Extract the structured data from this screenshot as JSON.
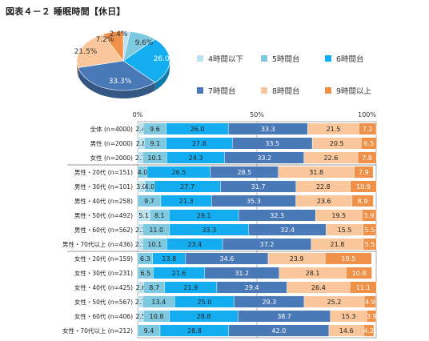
{
  "figure_title": "図表４－２ 睡眠時間【休日】",
  "chart_data": [
    {
      "type": "pie",
      "categories": [
        "4時間以下",
        "5時間台",
        "6時間台",
        "7時間台",
        "8時間台",
        "9時間以上"
      ],
      "values": [
        2.4,
        9.6,
        26.0,
        33.3,
        21.5,
        7.2
      ],
      "value_labels": [
        "2.4%",
        "9.6%",
        "26.0%",
        "33.3%",
        "21.5%",
        "7.2%"
      ],
      "colors": [
        "#bfe3ee",
        "#7ec8e0",
        "#14aef0",
        "#4a79b8",
        "#f9c79b",
        "#f0914a"
      ],
      "legend": "right"
    },
    {
      "type": "bar",
      "orientation": "horizontal",
      "stacked": true,
      "axis_labels": [
        "0%",
        "50%",
        "100%"
      ],
      "xlim": [
        0,
        100
      ],
      "categories": [
        "全体 (n=4000)",
        "男性 (n=2000)",
        "女性 (n=2000)",
        "男性・20代 (n=151)",
        "男性・30代 (n=101)",
        "男性・40代 (n=258)",
        "男性・50代 (n=492)",
        "男性・60代 (n=562)",
        "男性・70代以上 (n=436)",
        "女性・20代 (n=159)",
        "女性・30代 (n=231)",
        "女性・40代 (n=425)",
        "女性・50代 (n=567)",
        "女性・60代 (n=406)",
        "女性・70代以上 (n=212)"
      ],
      "series": [
        {
          "name": "4時間以下",
          "values": [
            2.4,
            2.8,
            2.1,
            0,
            3.0,
            0,
            5.1,
            2.3,
            2.1,
            0,
            0,
            2.6,
            2.1,
            2.5,
            0
          ]
        },
        {
          "name": "5時間台",
          "values": [
            9.6,
            9.1,
            10.1,
            4.0,
            4.0,
            9.7,
            8.1,
            11.0,
            10.1,
            6.3,
            6.5,
            8.7,
            13.4,
            10.8,
            9.4
          ]
        },
        {
          "name": "6時間台",
          "values": [
            26.0,
            27.8,
            24.3,
            26.5,
            27.7,
            21.3,
            29.1,
            33.3,
            23.4,
            13.8,
            21.6,
            21.9,
            25.0,
            28.8,
            28.8
          ]
        },
        {
          "name": "7時間台",
          "values": [
            33.3,
            33.5,
            33.2,
            28.5,
            31.7,
            35.3,
            32.3,
            32.4,
            37.2,
            34.6,
            31.2,
            29.4,
            29.3,
            38.7,
            42.0
          ]
        },
        {
          "name": "8時間台",
          "values": [
            21.5,
            20.5,
            22.6,
            31.8,
            22.8,
            23.6,
            19.5,
            15.5,
            21.8,
            23.9,
            28.1,
            26.4,
            25.2,
            15.3,
            14.6
          ]
        },
        {
          "name": "9時間以上",
          "values": [
            7.2,
            6.5,
            7.8,
            7.9,
            10.9,
            8.9,
            5.9,
            5.5,
            5.5,
            19.5,
            10.8,
            11.1,
            4.9,
            3.9,
            4.2
          ]
        }
      ]
    }
  ]
}
